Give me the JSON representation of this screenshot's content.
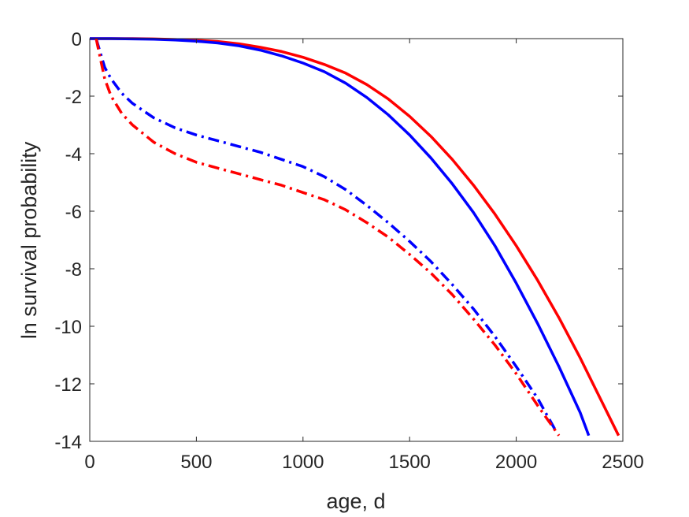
{
  "chart_data": {
    "type": "line",
    "title": "",
    "xlabel": "age, d",
    "ylabel": "ln survival probability",
    "xlim": [
      0,
      2500
    ],
    "ylim": [
      -14,
      0
    ],
    "xticks": [
      0,
      500,
      1000,
      1500,
      2000,
      2500
    ],
    "yticks": [
      0,
      -2,
      -4,
      -6,
      -8,
      -10,
      -12,
      -14
    ],
    "xtick_labels": [
      "0",
      "500",
      "1000",
      "1500",
      "2000",
      "2500"
    ],
    "ytick_labels": [
      "0",
      "-2",
      "-4",
      "-6",
      "-8",
      "-10",
      "-12",
      "-14"
    ],
    "grid": false,
    "legend": "none",
    "series": [
      {
        "color": "#ff0000",
        "style": "solid",
        "x": [
          0,
          100,
          200,
          300,
          400,
          500,
          600,
          700,
          800,
          900,
          1000,
          1100,
          1200,
          1300,
          1400,
          1500,
          1600,
          1700,
          1800,
          1900,
          2000,
          2100,
          2200,
          2300,
          2400,
          2480
        ],
        "y": [
          0,
          0,
          0,
          -0.01,
          -0.03,
          -0.06,
          -0.1,
          -0.18,
          -0.3,
          -0.45,
          -0.65,
          -0.9,
          -1.2,
          -1.6,
          -2.1,
          -2.7,
          -3.4,
          -4.2,
          -5.1,
          -6.1,
          -7.2,
          -8.4,
          -9.7,
          -11.1,
          -12.6,
          -13.8
        ]
      },
      {
        "color": "#0000ff",
        "style": "solid",
        "x": [
          0,
          100,
          200,
          300,
          400,
          500,
          600,
          700,
          800,
          900,
          1000,
          1100,
          1200,
          1300,
          1400,
          1500,
          1600,
          1700,
          1800,
          1900,
          2000,
          2100,
          2200,
          2300,
          2340
        ],
        "y": [
          0,
          0,
          -0.01,
          -0.02,
          -0.05,
          -0.09,
          -0.15,
          -0.25,
          -0.4,
          -0.6,
          -0.85,
          -1.15,
          -1.55,
          -2.05,
          -2.65,
          -3.35,
          -4.15,
          -5.05,
          -6.05,
          -7.2,
          -8.5,
          -9.9,
          -11.4,
          -13.0,
          -13.8
        ]
      },
      {
        "color": "#0000ff",
        "style": "dashdot",
        "x": [
          30,
          50,
          70,
          100,
          150,
          200,
          300,
          400,
          500,
          600,
          700,
          800,
          900,
          1000,
          1100,
          1200,
          1300,
          1400,
          1500,
          1600,
          1700,
          1800,
          1900,
          2000,
          2100,
          2190
        ],
        "y": [
          0,
          -0.5,
          -1.0,
          -1.4,
          -1.9,
          -2.25,
          -2.75,
          -3.1,
          -3.35,
          -3.55,
          -3.75,
          -3.95,
          -4.2,
          -4.45,
          -4.8,
          -5.25,
          -5.8,
          -6.4,
          -7.05,
          -7.75,
          -8.55,
          -9.4,
          -10.35,
          -11.4,
          -12.5,
          -13.7
        ]
      },
      {
        "color": "#ff0000",
        "style": "dashdot",
        "x": [
          30,
          50,
          70,
          100,
          150,
          200,
          300,
          400,
          500,
          600,
          700,
          800,
          900,
          1000,
          1100,
          1200,
          1300,
          1400,
          1500,
          1600,
          1700,
          1800,
          1900,
          2000,
          2100,
          2200
        ],
        "y": [
          0,
          -0.7,
          -1.4,
          -2.0,
          -2.6,
          -3.0,
          -3.6,
          -4.0,
          -4.3,
          -4.5,
          -4.7,
          -4.9,
          -5.1,
          -5.35,
          -5.6,
          -5.95,
          -6.4,
          -6.9,
          -7.5,
          -8.15,
          -8.9,
          -9.75,
          -10.65,
          -11.65,
          -12.75,
          -13.8
        ]
      }
    ]
  }
}
